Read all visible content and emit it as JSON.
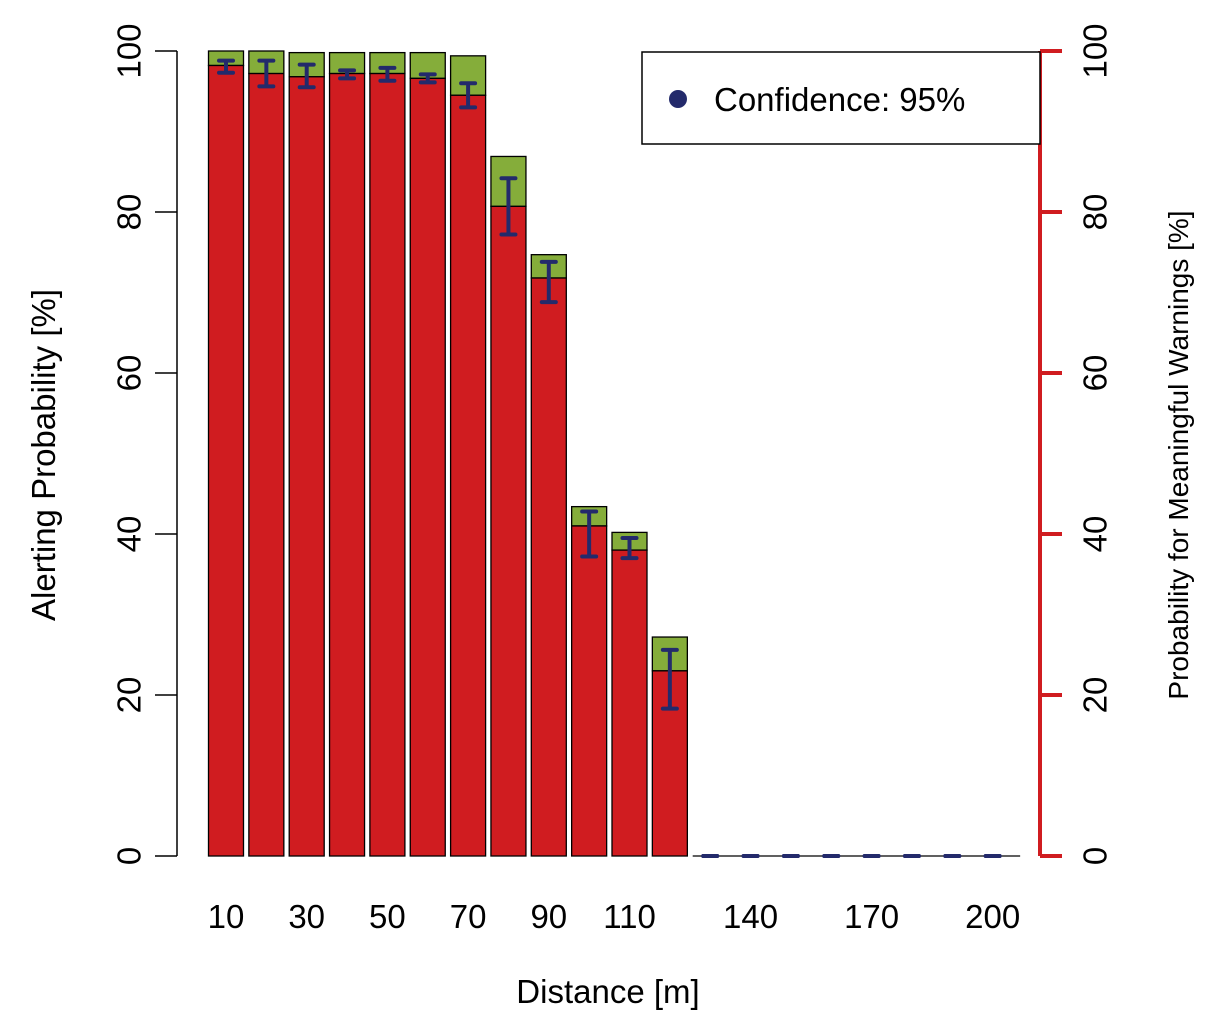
{
  "chart_data": {
    "type": "bar",
    "xlabel": "Distance [m]",
    "ylabel": "Alerting Probability [%]",
    "y2label": "Probability for Meaningful Warnings [%]",
    "ylim": [
      0,
      100
    ],
    "y2lim": [
      0,
      100
    ],
    "yticks": [
      "0",
      "20",
      "40",
      "60",
      "80",
      "100"
    ],
    "y2ticks": [
      "0",
      "20",
      "40",
      "60",
      "80",
      "100"
    ],
    "grid": false,
    "legend": {
      "position": "top-right",
      "label": "Confidence: 95%"
    },
    "x": [
      10,
      20,
      30,
      40,
      50,
      60,
      70,
      80,
      90,
      100,
      110,
      120,
      130,
      140,
      150,
      160,
      170,
      180,
      190,
      200
    ],
    "x_tick_labels": [
      "10",
      "30",
      "50",
      "70",
      "90",
      "110",
      "140",
      "170",
      "200"
    ],
    "series": [
      {
        "name": "",
        "color": "#d01c20",
        "values": [
          98.2,
          97.2,
          96.8,
          97.2,
          97.2,
          96.6,
          94.5,
          80.7,
          71.8,
          41.0,
          38.0,
          23.0,
          0,
          0,
          0,
          0,
          0,
          0,
          0,
          0
        ]
      },
      {
        "name": "",
        "color": "#85ad3a",
        "values": [
          100.0,
          100.0,
          99.8,
          99.8,
          99.8,
          99.8,
          99.4,
          86.9,
          74.7,
          43.4,
          40.2,
          27.2,
          0,
          0,
          0,
          0,
          0,
          0,
          0,
          0
        ]
      }
    ],
    "error_bars": {
      "color": "#232a6b",
      "center": [
        98.2,
        97.2,
        96.8,
        97.2,
        97.2,
        96.6,
        94.5,
        80.7,
        71.8,
        41.0,
        38.0,
        23.0,
        0,
        0,
        0,
        0,
        0,
        0,
        0,
        0
      ],
      "lower": [
        97.3,
        95.6,
        95.5,
        96.6,
        96.3,
        96.1,
        93.0,
        77.2,
        68.8,
        37.2,
        37.0,
        18.3,
        0,
        0,
        0,
        0,
        0,
        0,
        0,
        0
      ],
      "upper": [
        98.8,
        98.8,
        98.3,
        97.6,
        97.9,
        97.1,
        96.0,
        84.2,
        73.8,
        42.8,
        39.5,
        25.6,
        0,
        0,
        0,
        0,
        0,
        0,
        0,
        0
      ]
    },
    "colors": {
      "alerting": "#d01c20",
      "meaningful": "#85ad3a",
      "right_axis": "#d01c20",
      "confidence": "#232a6b"
    }
  }
}
